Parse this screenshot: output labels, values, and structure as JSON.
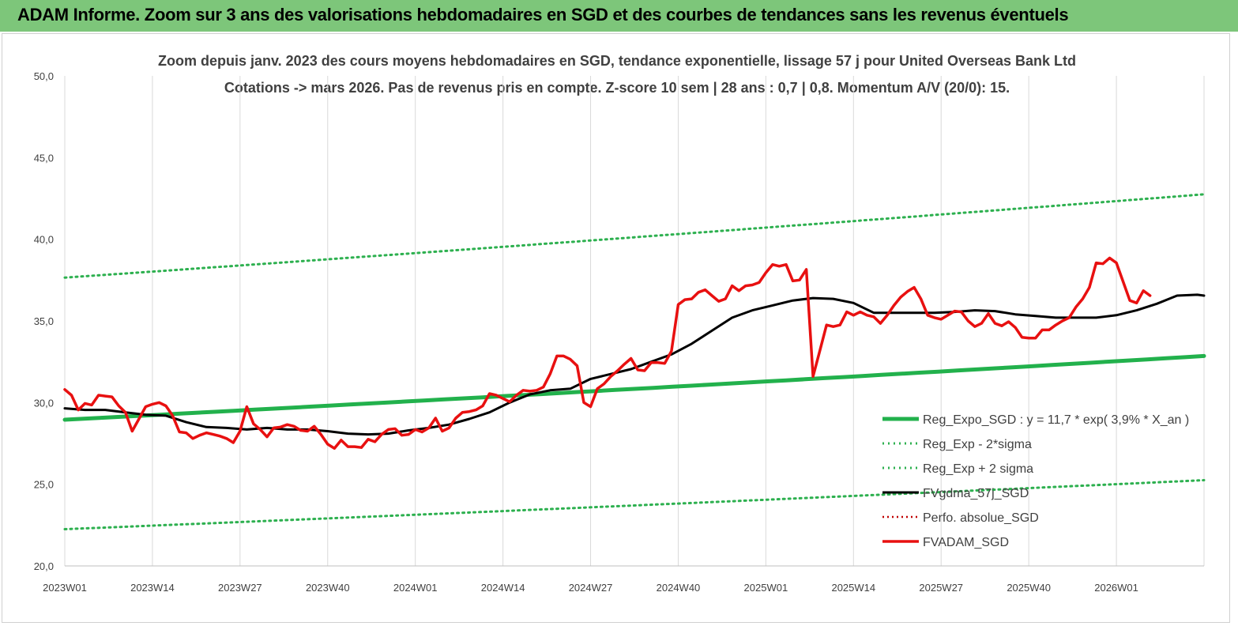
{
  "header": {
    "title": "ADAM Informe. Zoom sur 3 ans des valorisations hebdomadaires en SGD et des courbes de tendances sans les revenus éventuels"
  },
  "chart_data": {
    "type": "line",
    "title": "Zoom depuis janv. 2023 des cours moyens hebdomadaires en SGD, tendance exponentielle, lissage 57 j pour United Overseas Bank Ltd",
    "subtitle": "Cotations -> mars 2026. Pas de revenus pris en compte. Z-score 10 sem | 28 ans : 0,7 | 0,8. Momentum A/V (20/0): 15.",
    "xlabel": "",
    "ylabel": "",
    "ylim": [
      20,
      50
    ],
    "yticks": [
      "50,0",
      "45,0",
      "40,0",
      "35,0",
      "30,0",
      "25,0",
      "20,0"
    ],
    "xticks": [
      "2023W01",
      "2023W14",
      "2023W27",
      "2023W40",
      "2024W01",
      "2024W14",
      "2024W27",
      "2024W40",
      "2025W01",
      "2025W14",
      "2025W27",
      "2025W40",
      "2026W01"
    ],
    "x_range_weeks": [
      0,
      169
    ],
    "grid": "vertical",
    "legend_position": "bottom-right",
    "colors": {
      "reg": "#22b14c",
      "band": "#2db04f",
      "fv": "#000000",
      "perf": "#c00000",
      "adam": "#e81010",
      "banner": "#7dc67a"
    },
    "series": [
      {
        "name": "Reg_Expo_SGD : y = 11,7 * exp( 3,9% *  X_an )",
        "style": "solid-thick",
        "kind": "exp",
        "start": 28.95,
        "end": 32.85
      },
      {
        "name": "Reg_Exp - 2*sigma",
        "style": "dotted",
        "kind": "exp",
        "start": 22.25,
        "end": 25.25
      },
      {
        "name": "Reg_Exp + 2 sigma",
        "style": "dotted",
        "kind": "exp",
        "start": 37.65,
        "end": 42.75
      },
      {
        "name": "FVgdma_57j_SGD",
        "style": "solid",
        "points": [
          [
            0,
            29.65
          ],
          [
            3,
            29.55
          ],
          [
            6,
            29.55
          ],
          [
            9,
            29.4
          ],
          [
            12,
            29.25
          ],
          [
            15,
            29.2
          ],
          [
            18,
            28.8
          ],
          [
            21,
            28.5
          ],
          [
            24,
            28.45
          ],
          [
            27,
            28.35
          ],
          [
            30,
            28.45
          ],
          [
            33,
            28.35
          ],
          [
            36,
            28.35
          ],
          [
            39,
            28.25
          ],
          [
            42,
            28.1
          ],
          [
            45,
            28.05
          ],
          [
            48,
            28.1
          ],
          [
            51,
            28.3
          ],
          [
            54,
            28.45
          ],
          [
            57,
            28.65
          ],
          [
            60,
            29.0
          ],
          [
            63,
            29.4
          ],
          [
            66,
            30.0
          ],
          [
            69,
            30.5
          ],
          [
            72,
            30.75
          ],
          [
            75,
            30.85
          ],
          [
            78,
            31.45
          ],
          [
            81,
            31.75
          ],
          [
            84,
            32.05
          ],
          [
            87,
            32.5
          ],
          [
            90,
            32.95
          ],
          [
            93,
            33.6
          ],
          [
            96,
            34.4
          ],
          [
            99,
            35.2
          ],
          [
            102,
            35.65
          ],
          [
            105,
            35.95
          ],
          [
            108,
            36.25
          ],
          [
            111,
            36.4
          ],
          [
            114,
            36.35
          ],
          [
            117,
            36.1
          ],
          [
            120,
            35.5
          ],
          [
            123,
            35.5
          ],
          [
            126,
            35.5
          ],
          [
            129,
            35.5
          ],
          [
            132,
            35.55
          ],
          [
            135,
            35.65
          ],
          [
            138,
            35.6
          ],
          [
            141,
            35.4
          ],
          [
            144,
            35.3
          ],
          [
            147,
            35.2
          ],
          [
            150,
            35.2
          ],
          [
            153,
            35.2
          ],
          [
            156,
            35.35
          ],
          [
            159,
            35.65
          ],
          [
            162,
            36.05
          ],
          [
            165,
            36.55
          ],
          [
            168,
            36.6
          ],
          [
            169,
            36.55
          ]
        ]
      },
      {
        "name": "Perfo. absolue_SGD",
        "style": "dotted",
        "points": []
      },
      {
        "name": "FVADAM_SGD",
        "style": "solid-thick",
        "points": [
          [
            0,
            30.8
          ],
          [
            1,
            30.45
          ],
          [
            2,
            29.55
          ],
          [
            3,
            29.95
          ],
          [
            4,
            29.85
          ],
          [
            5,
            30.45
          ],
          [
            6,
            30.4
          ],
          [
            7,
            30.35
          ],
          [
            8,
            29.8
          ],
          [
            9,
            29.4
          ],
          [
            10,
            28.25
          ],
          [
            11,
            29.0
          ],
          [
            12,
            29.75
          ],
          [
            13,
            29.9
          ],
          [
            14,
            30.0
          ],
          [
            15,
            29.8
          ],
          [
            16,
            29.2
          ],
          [
            17,
            28.2
          ],
          [
            18,
            28.15
          ],
          [
            19,
            27.8
          ],
          [
            20,
            28.0
          ],
          [
            21,
            28.15
          ],
          [
            22,
            28.05
          ],
          [
            23,
            27.95
          ],
          [
            24,
            27.8
          ],
          [
            25,
            27.55
          ],
          [
            26,
            28.25
          ],
          [
            27,
            29.75
          ],
          [
            28,
            28.7
          ],
          [
            29,
            28.35
          ],
          [
            30,
            27.9
          ],
          [
            31,
            28.45
          ],
          [
            32,
            28.5
          ],
          [
            33,
            28.65
          ],
          [
            34,
            28.55
          ],
          [
            35,
            28.3
          ],
          [
            36,
            28.25
          ],
          [
            37,
            28.55
          ],
          [
            38,
            28.05
          ],
          [
            39,
            27.45
          ],
          [
            40,
            27.2
          ],
          [
            41,
            27.7
          ],
          [
            42,
            27.3
          ],
          [
            43,
            27.3
          ],
          [
            44,
            27.25
          ],
          [
            45,
            27.75
          ],
          [
            46,
            27.6
          ],
          [
            47,
            28.05
          ],
          [
            48,
            28.35
          ],
          [
            49,
            28.4
          ],
          [
            50,
            28.0
          ],
          [
            51,
            28.05
          ],
          [
            52,
            28.35
          ],
          [
            53,
            28.2
          ],
          [
            54,
            28.45
          ],
          [
            55,
            29.05
          ],
          [
            56,
            28.25
          ],
          [
            57,
            28.45
          ],
          [
            58,
            29.05
          ],
          [
            59,
            29.4
          ],
          [
            60,
            29.45
          ],
          [
            61,
            29.55
          ],
          [
            62,
            29.8
          ],
          [
            63,
            30.55
          ],
          [
            64,
            30.45
          ],
          [
            65,
            30.25
          ],
          [
            66,
            30.05
          ],
          [
            67,
            30.45
          ],
          [
            68,
            30.75
          ],
          [
            69,
            30.7
          ],
          [
            70,
            30.75
          ],
          [
            71,
            30.95
          ],
          [
            72,
            31.75
          ],
          [
            73,
            32.85
          ],
          [
            74,
            32.85
          ],
          [
            75,
            32.65
          ],
          [
            76,
            32.25
          ],
          [
            77,
            30.0
          ],
          [
            78,
            29.75
          ],
          [
            79,
            30.85
          ],
          [
            80,
            31.15
          ],
          [
            81,
            31.6
          ],
          [
            82,
            31.95
          ],
          [
            83,
            32.35
          ],
          [
            84,
            32.7
          ],
          [
            85,
            32.0
          ],
          [
            86,
            31.95
          ],
          [
            87,
            32.45
          ],
          [
            88,
            32.45
          ],
          [
            89,
            32.4
          ],
          [
            90,
            33.15
          ],
          [
            91,
            36.0
          ],
          [
            92,
            36.3
          ],
          [
            93,
            36.35
          ],
          [
            94,
            36.75
          ],
          [
            95,
            36.9
          ],
          [
            96,
            36.55
          ],
          [
            97,
            36.2
          ],
          [
            98,
            36.35
          ],
          [
            99,
            37.15
          ],
          [
            100,
            36.85
          ],
          [
            101,
            37.15
          ],
          [
            102,
            37.2
          ],
          [
            103,
            37.35
          ],
          [
            104,
            37.95
          ],
          [
            105,
            38.45
          ],
          [
            106,
            38.35
          ],
          [
            107,
            38.45
          ],
          [
            108,
            37.45
          ],
          [
            109,
            37.5
          ],
          [
            110,
            38.15
          ],
          [
            111,
            31.6
          ],
          [
            112,
            33.15
          ],
          [
            113,
            34.75
          ],
          [
            114,
            34.65
          ],
          [
            115,
            34.75
          ],
          [
            116,
            35.55
          ],
          [
            117,
            35.35
          ],
          [
            118,
            35.55
          ],
          [
            119,
            35.35
          ],
          [
            120,
            35.25
          ],
          [
            121,
            34.85
          ],
          [
            122,
            35.35
          ],
          [
            123,
            35.95
          ],
          [
            124,
            36.45
          ],
          [
            125,
            36.8
          ],
          [
            126,
            37.05
          ],
          [
            127,
            36.35
          ],
          [
            128,
            35.35
          ],
          [
            129,
            35.2
          ],
          [
            130,
            35.1
          ],
          [
            131,
            35.35
          ],
          [
            132,
            35.6
          ],
          [
            133,
            35.55
          ],
          [
            134,
            35.0
          ],
          [
            135,
            34.65
          ],
          [
            136,
            34.85
          ],
          [
            137,
            35.45
          ],
          [
            138,
            34.85
          ],
          [
            139,
            34.7
          ],
          [
            140,
            34.95
          ],
          [
            141,
            34.6
          ],
          [
            142,
            34.0
          ],
          [
            143,
            33.95
          ],
          [
            144,
            33.95
          ],
          [
            145,
            34.45
          ],
          [
            146,
            34.45
          ],
          [
            147,
            34.75
          ],
          [
            148,
            35.0
          ],
          [
            149,
            35.2
          ],
          [
            150,
            35.85
          ],
          [
            151,
            36.35
          ],
          [
            152,
            37.05
          ],
          [
            153,
            38.55
          ],
          [
            154,
            38.5
          ],
          [
            155,
            38.85
          ],
          [
            156,
            38.55
          ],
          [
            157,
            37.4
          ],
          [
            158,
            36.25
          ],
          [
            159,
            36.1
          ],
          [
            160,
            36.85
          ],
          [
            161,
            36.55
          ]
        ]
      }
    ]
  }
}
